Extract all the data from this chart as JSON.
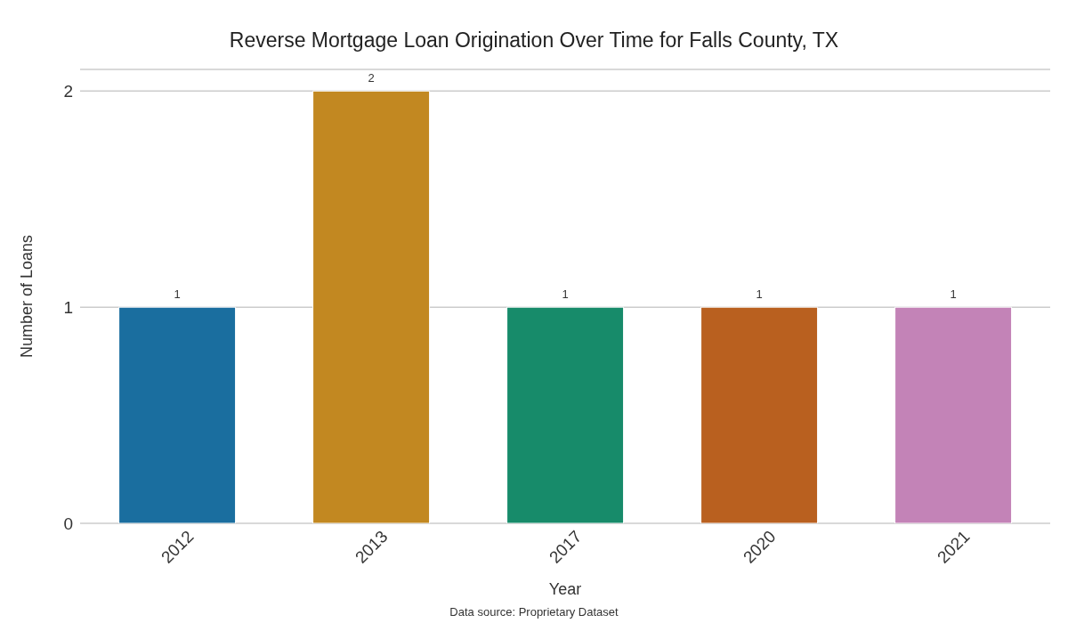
{
  "chart_data": {
    "type": "bar",
    "title": "Reverse Mortgage Loan Origination Over Time for Falls County, TX",
    "xlabel": "Year",
    "ylabel": "Number of Loans",
    "categories": [
      "2012",
      "2013",
      "2017",
      "2020",
      "2021"
    ],
    "values": [
      1,
      2,
      1,
      1,
      1
    ],
    "colors": [
      "#1a6e9f",
      "#c28821",
      "#178b6a",
      "#b9601f",
      "#c383b7"
    ],
    "ylim": [
      0,
      2.1
    ],
    "yticks": [
      0,
      1,
      2
    ],
    "grid": "y",
    "data_labels": true,
    "annotations": [
      "Data source: Proprietary Dataset"
    ]
  }
}
